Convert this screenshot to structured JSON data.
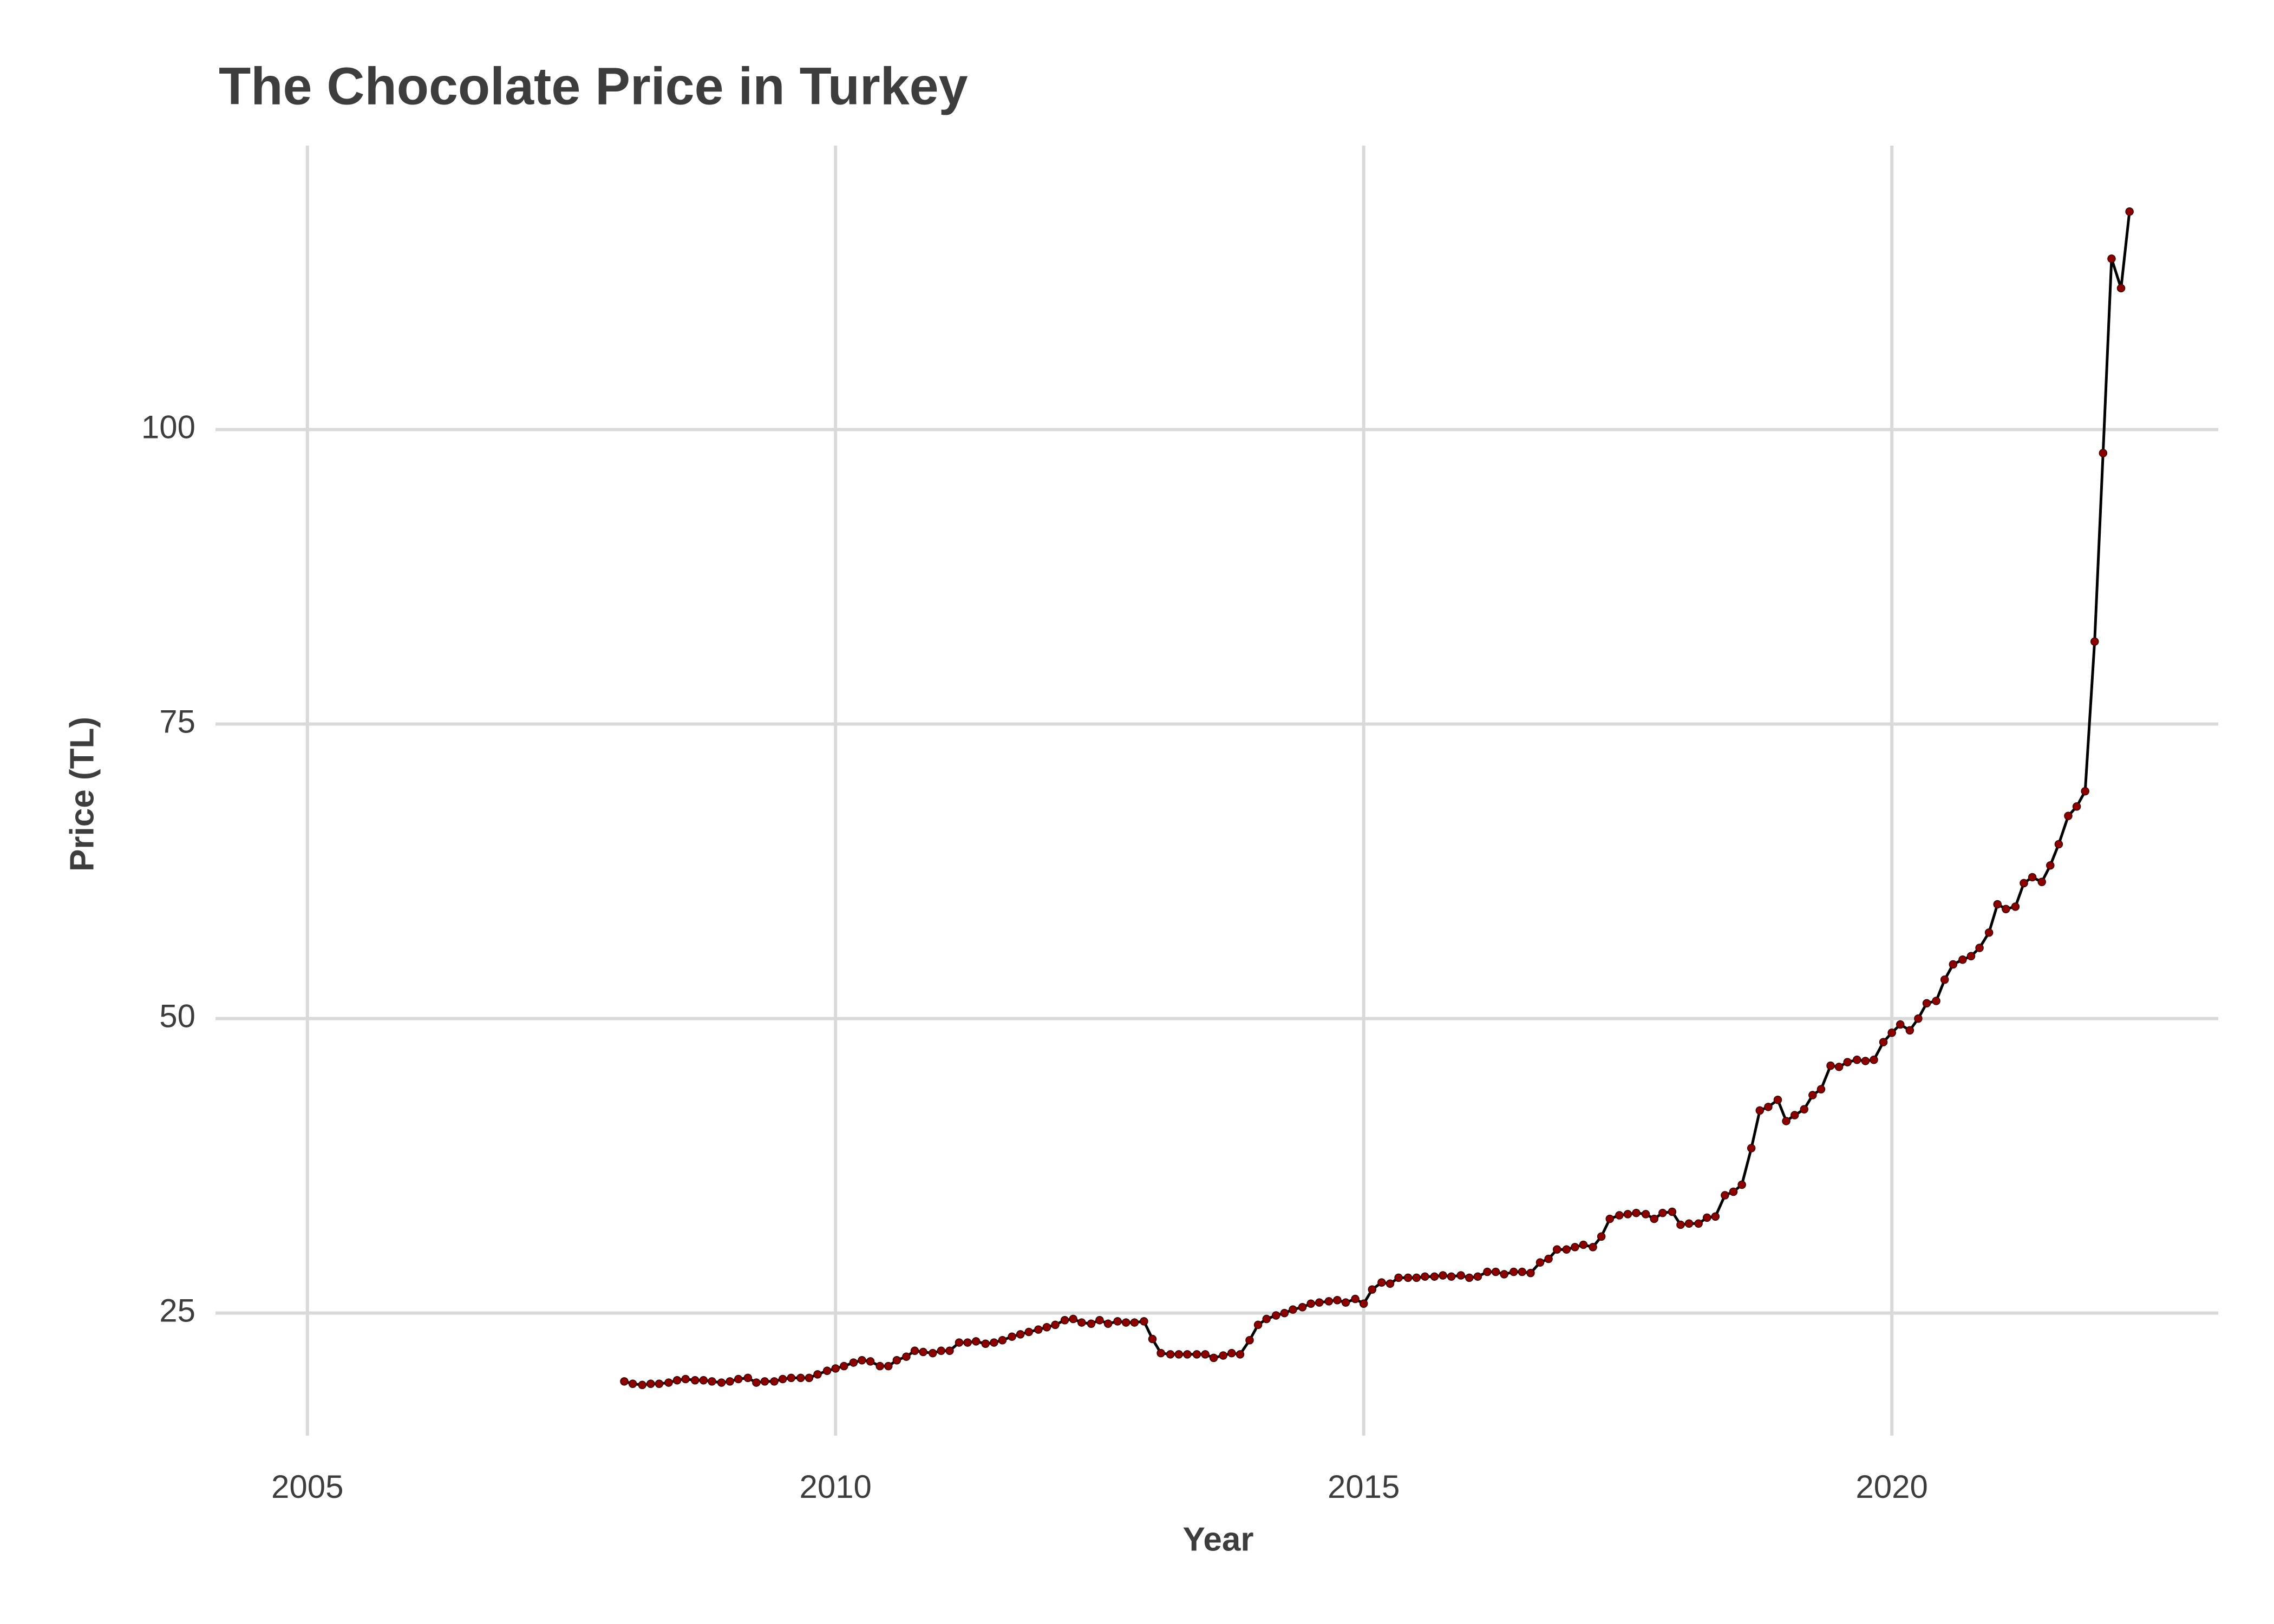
{
  "chart_data": {
    "type": "line",
    "title": "The Chocolate Price in Turkey",
    "x_label": "Year",
    "y_label": "Price (TL)",
    "x": [
      2008.0,
      2008.08,
      2008.17,
      2008.25,
      2008.33,
      2008.42,
      2008.5,
      2008.58,
      2008.67,
      2008.75,
      2008.83,
      2008.92,
      2009.0,
      2009.08,
      2009.17,
      2009.25,
      2009.33,
      2009.42,
      2009.5,
      2009.58,
      2009.67,
      2009.75,
      2009.83,
      2009.92,
      2010.0,
      2010.08,
      2010.17,
      2010.25,
      2010.33,
      2010.42,
      2010.5,
      2010.58,
      2010.67,
      2010.75,
      2010.83,
      2010.92,
      2011.0,
      2011.08,
      2011.17,
      2011.25,
      2011.33,
      2011.42,
      2011.5,
      2011.58,
      2011.67,
      2011.75,
      2011.83,
      2011.92,
      2012.0,
      2012.08,
      2012.17,
      2012.25,
      2012.33,
      2012.42,
      2012.5,
      2012.58,
      2012.67,
      2012.75,
      2012.83,
      2012.92,
      2013.0,
      2013.08,
      2013.17,
      2013.25,
      2013.33,
      2013.42,
      2013.5,
      2013.58,
      2013.67,
      2013.75,
      2013.83,
      2013.92,
      2014.0,
      2014.08,
      2014.17,
      2014.25,
      2014.33,
      2014.42,
      2014.5,
      2014.58,
      2014.67,
      2014.75,
      2014.83,
      2014.92,
      2015.0,
      2015.08,
      2015.17,
      2015.25,
      2015.33,
      2015.42,
      2015.5,
      2015.58,
      2015.67,
      2015.75,
      2015.83,
      2015.92,
      2016.0,
      2016.08,
      2016.17,
      2016.25,
      2016.33,
      2016.42,
      2016.5,
      2016.58,
      2016.67,
      2016.75,
      2016.83,
      2016.92,
      2017.0,
      2017.08,
      2017.17,
      2017.25,
      2017.33,
      2017.42,
      2017.5,
      2017.58,
      2017.67,
      2017.75,
      2017.83,
      2017.92,
      2018.0,
      2018.08,
      2018.17,
      2018.25,
      2018.33,
      2018.42,
      2018.5,
      2018.58,
      2018.67,
      2018.75,
      2018.83,
      2018.92,
      2019.0,
      2019.08,
      2019.17,
      2019.25,
      2019.33,
      2019.42,
      2019.5,
      2019.58,
      2019.67,
      2019.75,
      2019.83,
      2019.92,
      2020.0,
      2020.08,
      2020.17,
      2020.25,
      2020.33,
      2020.42,
      2020.5,
      2020.58,
      2020.67,
      2020.75,
      2020.83,
      2020.92,
      2021.0,
      2021.08,
      2021.17,
      2021.25,
      2021.33,
      2021.42,
      2021.5,
      2021.58,
      2021.67,
      2021.75,
      2021.83,
      2021.92,
      2022.0,
      2022.08,
      2022.17,
      2022.25
    ],
    "values": [
      19.2,
      19.0,
      18.9,
      19.0,
      19.0,
      19.1,
      19.3,
      19.4,
      19.3,
      19.3,
      19.2,
      19.1,
      19.2,
      19.4,
      19.5,
      19.1,
      19.2,
      19.2,
      19.4,
      19.5,
      19.5,
      19.5,
      19.8,
      20.1,
      20.3,
      20.5,
      20.8,
      21.0,
      20.9,
      20.5,
      20.5,
      21.0,
      21.3,
      21.8,
      21.7,
      21.6,
      21.8,
      21.8,
      22.5,
      22.5,
      22.6,
      22.4,
      22.5,
      22.7,
      23.0,
      23.2,
      23.4,
      23.6,
      23.8,
      24.0,
      24.4,
      24.5,
      24.2,
      24.1,
      24.4,
      24.1,
      24.3,
      24.2,
      24.2,
      24.3,
      22.8,
      21.6,
      21.5,
      21.5,
      21.5,
      21.5,
      21.5,
      21.2,
      21.4,
      21.6,
      21.5,
      22.7,
      24.0,
      24.5,
      24.8,
      25.0,
      25.3,
      25.5,
      25.8,
      25.9,
      26.0,
      26.1,
      25.9,
      26.2,
      25.8,
      27.0,
      27.6,
      27.5,
      28.0,
      28.0,
      28.0,
      28.1,
      28.1,
      28.2,
      28.1,
      28.2,
      28.0,
      28.1,
      28.5,
      28.5,
      28.3,
      28.5,
      28.5,
      28.4,
      29.3,
      29.6,
      30.4,
      30.4,
      30.6,
      30.8,
      30.6,
      31.5,
      33.0,
      33.3,
      33.4,
      33.5,
      33.4,
      33.0,
      33.5,
      33.6,
      32.5,
      32.6,
      32.6,
      33.1,
      33.2,
      35.0,
      35.3,
      35.9,
      39.0,
      42.2,
      42.5,
      43.1,
      41.3,
      41.8,
      42.3,
      43.5,
      44.0,
      46.0,
      45.9,
      46.3,
      46.5,
      46.4,
      46.5,
      48.0,
      48.8,
      49.5,
      49.0,
      50.0,
      51.3,
      51.5,
      53.3,
      54.6,
      55.0,
      55.3,
      56.0,
      57.3,
      59.7,
      59.3,
      59.5,
      61.5,
      62.0,
      61.6,
      63.0,
      64.8,
      67.2,
      68.0,
      69.3,
      82.0,
      98.0,
      114.5,
      112.0,
      118.5
    ],
    "line_color": "#000000",
    "point_color": "#8b0000",
    "xlim": [
      2004.13,
      2023.09
    ],
    "ylim": [
      14.6,
      124.1
    ],
    "xticks": [
      2005,
      2010,
      2015,
      2020
    ],
    "yticks": [
      25,
      50,
      75,
      100
    ],
    "grid": true
  }
}
